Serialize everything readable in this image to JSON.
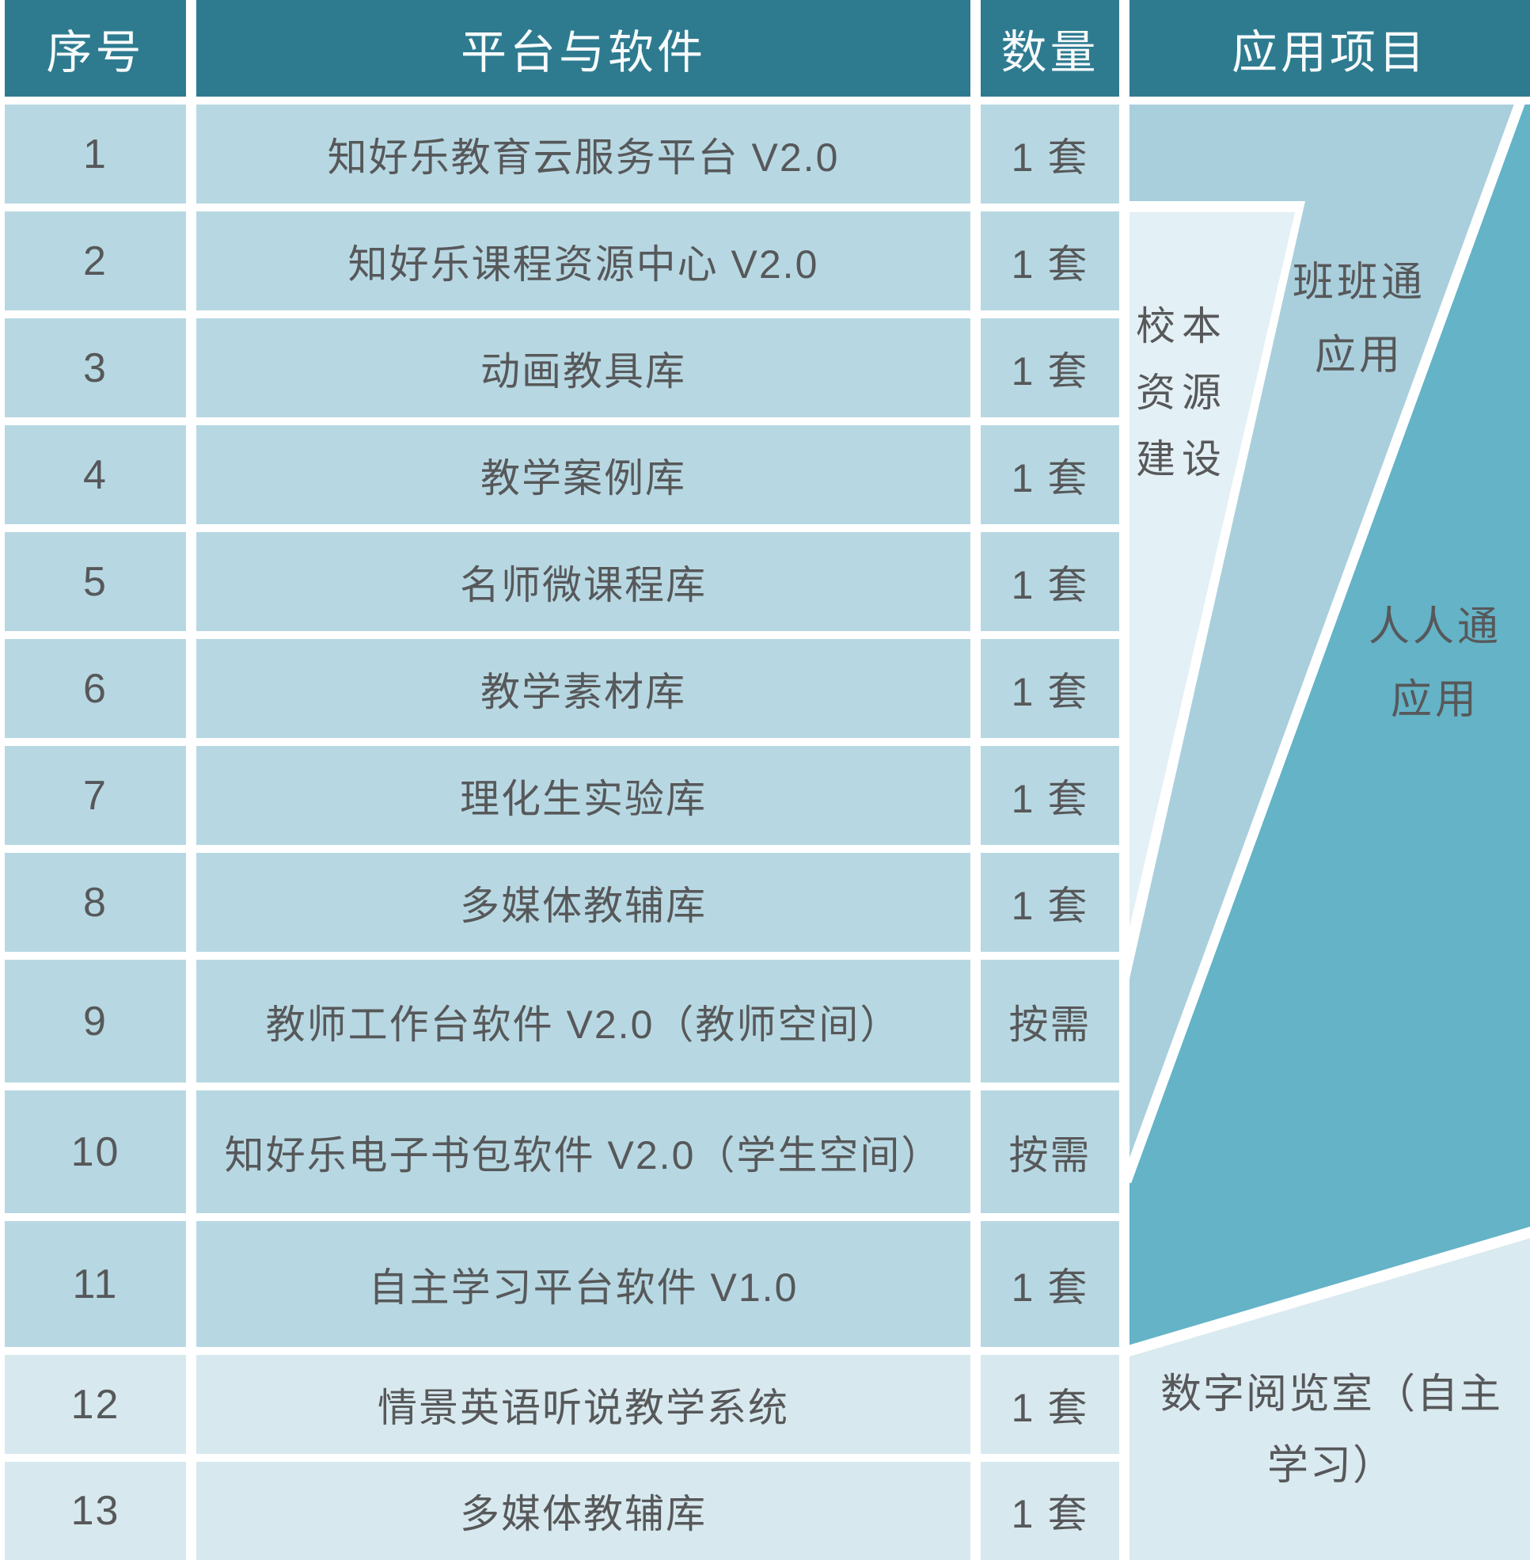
{
  "header": {
    "col_no": "序号",
    "col_platform": "平台与软件",
    "col_qty": "数量",
    "col_app": "应用项目"
  },
  "rows": [
    {
      "no": "1",
      "name": "知好乐教育云服务平台 V2.0",
      "qty": "1 套"
    },
    {
      "no": "2",
      "name": "知好乐课程资源中心 V2.0",
      "qty": "1 套"
    },
    {
      "no": "3",
      "name": "动画教具库",
      "qty": "1 套"
    },
    {
      "no": "4",
      "name": "教学案例库",
      "qty": "1 套"
    },
    {
      "no": "5",
      "name": "名师微课程库",
      "qty": "1 套"
    },
    {
      "no": "6",
      "name": "教学素材库",
      "qty": "1 套"
    },
    {
      "no": "7",
      "name": "理化生实验库",
      "qty": "1 套"
    },
    {
      "no": "8",
      "name": "多媒体教辅库",
      "qty": "1 套"
    },
    {
      "no": "9",
      "name": "教师工作台软件 V2.0（教师空间）",
      "qty": "按需"
    },
    {
      "no": "10",
      "name": "知好乐电子书包软件 V2.0（学生空间）",
      "qty": "按需"
    },
    {
      "no": "11",
      "name": "自主学习平台软件 V1.0",
      "qty": "1 套"
    },
    {
      "no": "12",
      "name": "情景英语听说教学系统",
      "qty": "1 套"
    },
    {
      "no": "13",
      "name": "多媒体教辅库",
      "qty": "1 套"
    }
  ],
  "app_regions": {
    "school_resource": {
      "line1": "校本",
      "line2": "资源",
      "line3": "建设"
    },
    "banbantong": {
      "line1": "班班通",
      "line2": "应用"
    },
    "renrentong": {
      "line1": "人人通",
      "line2": "应用"
    },
    "digital_reading": {
      "line1": "数字阅览室（自主",
      "line2": "学习）"
    }
  },
  "colors": {
    "header_bg": "#2e7b90",
    "header_text": "#f7fbfc",
    "row_bg": "#b7d8e2",
    "row_bg_light": "#d7e9ee",
    "banbantong_region": "#a9cfdc",
    "renrentong_region": "#64b3c7",
    "school_resource_region": "#e3f0f5",
    "digital_reading_region": "#d9eaf0",
    "body_text": "#57585a",
    "gap_white": "#ffffff"
  }
}
